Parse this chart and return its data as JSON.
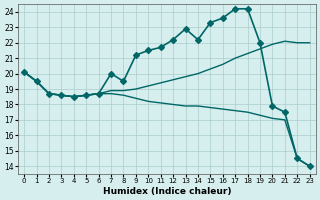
{
  "xlabel": "Humidex (Indice chaleur)",
  "ylabel": "",
  "background_color": "#d6eeed",
  "grid_color": "#aacccc",
  "line_color": "#006666",
  "xlim": [
    -0.5,
    23.5
  ],
  "ylim": [
    13.5,
    24.5
  ],
  "yticks": [
    14,
    15,
    16,
    17,
    18,
    19,
    20,
    21,
    22,
    23,
    24
  ],
  "xticks": [
    0,
    1,
    2,
    3,
    4,
    5,
    6,
    7,
    8,
    9,
    10,
    11,
    12,
    13,
    14,
    15,
    16,
    17,
    18,
    19,
    20,
    21,
    22,
    23
  ],
  "series": [
    {
      "x": [
        0,
        1,
        2,
        3,
        4,
        5,
        6,
        7,
        8,
        9,
        10,
        11,
        12,
        13,
        14,
        15,
        16,
        17,
        18,
        19,
        20,
        21,
        22,
        23
      ],
      "y": [
        20.1,
        19.5,
        18.7,
        18.6,
        18.5,
        18.6,
        18.7,
        20.0,
        19.5,
        21.2,
        21.5,
        21.7,
        22.2,
        22.9,
        22.2,
        23.3,
        23.6,
        24.2,
        24.2,
        22.0,
        17.9,
        17.5,
        14.5,
        14.0
      ],
      "marker": "D",
      "markersize": 3,
      "linewidth": 1.2
    },
    {
      "x": [
        0,
        1,
        2,
        3,
        4,
        5,
        6,
        7,
        8,
        9,
        10,
        11,
        12,
        13,
        14,
        15,
        16,
        17,
        18,
        19,
        20,
        21,
        22,
        23
      ],
      "y": [
        20.1,
        19.5,
        18.7,
        18.6,
        18.5,
        18.6,
        18.7,
        18.9,
        18.9,
        19.0,
        19.2,
        19.4,
        19.6,
        19.8,
        20.0,
        20.3,
        20.6,
        21.0,
        21.3,
        21.6,
        21.9,
        22.1,
        22.0,
        22.0
      ],
      "marker": null,
      "markersize": 0,
      "linewidth": 1.0
    },
    {
      "x": [
        0,
        1,
        2,
        3,
        4,
        5,
        6,
        7,
        8,
        9,
        10,
        11,
        12,
        13,
        14,
        15,
        16,
        17,
        18,
        19,
        20,
        21,
        22,
        23
      ],
      "y": [
        20.1,
        19.5,
        18.7,
        18.6,
        18.5,
        18.6,
        18.7,
        18.7,
        18.6,
        18.4,
        18.2,
        18.1,
        18.0,
        17.9,
        17.9,
        17.8,
        17.7,
        17.6,
        17.5,
        17.3,
        17.1,
        17.0,
        14.5,
        14.0
      ],
      "marker": null,
      "markersize": 0,
      "linewidth": 1.0
    }
  ]
}
